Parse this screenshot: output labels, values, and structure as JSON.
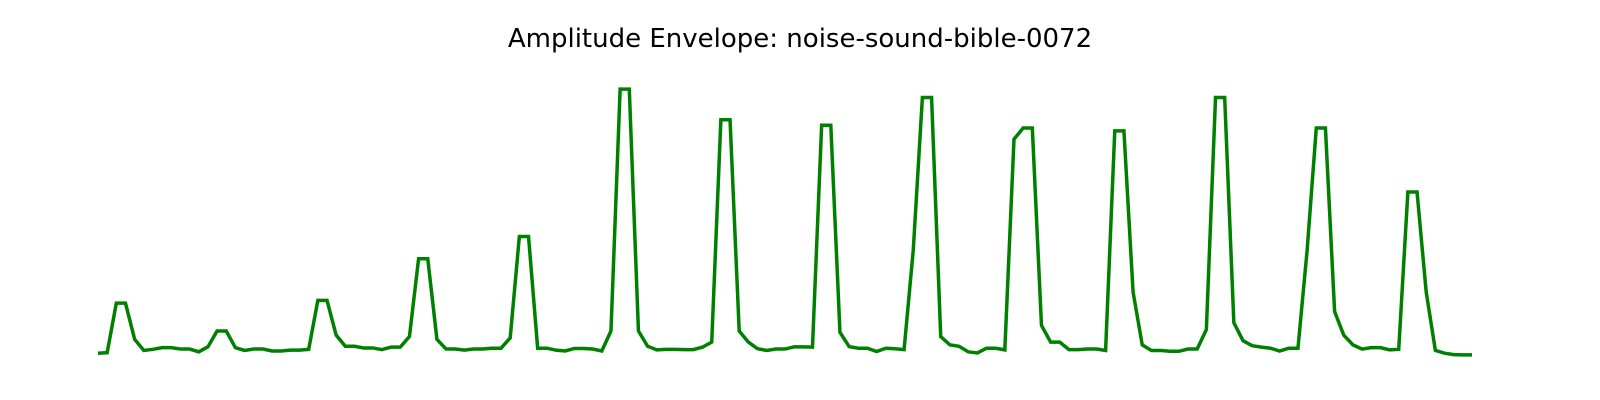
{
  "chart_data": {
    "type": "line",
    "title": "Amplitude Envelope: noise-sound-bible-0072",
    "xlabel": "",
    "ylabel": "",
    "axes_visible": false,
    "grid": false,
    "line_color": "#008000",
    "ylim": [
      0,
      1.0
    ],
    "series": [
      {
        "values": [
          0.01,
          0.012,
          0.19,
          0.19,
          0.06,
          0.02,
          0.024,
          0.03,
          0.03,
          0.025,
          0.025,
          0.015,
          0.033,
          0.09,
          0.09,
          0.03,
          0.02,
          0.025,
          0.025,
          0.018,
          0.018,
          0.021,
          0.021,
          0.024,
          0.2,
          0.2,
          0.075,
          0.035,
          0.035,
          0.029,
          0.029,
          0.023,
          0.032,
          0.032,
          0.07,
          0.35,
          0.35,
          0.06,
          0.025,
          0.025,
          0.021,
          0.025,
          0.025,
          0.028,
          0.028,
          0.065,
          0.43,
          0.43,
          0.028,
          0.028,
          0.021,
          0.018,
          0.027,
          0.027,
          0.025,
          0.018,
          0.09,
          0.96,
          0.96,
          0.09,
          0.035,
          0.022,
          0.024,
          0.024,
          0.023,
          0.023,
          0.032,
          0.05,
          0.85,
          0.85,
          0.09,
          0.05,
          0.026,
          0.02,
          0.025,
          0.025,
          0.033,
          0.033,
          0.032,
          0.83,
          0.83,
          0.085,
          0.034,
          0.028,
          0.028,
          0.016,
          0.028,
          0.026,
          0.023,
          0.38,
          0.93,
          0.93,
          0.07,
          0.04,
          0.035,
          0.015,
          0.011,
          0.028,
          0.028,
          0.022,
          0.78,
          0.82,
          0.82,
          0.11,
          0.05,
          0.05,
          0.023,
          0.023,
          0.025,
          0.025,
          0.02,
          0.81,
          0.81,
          0.23,
          0.04,
          0.02,
          0.02,
          0.017,
          0.017,
          0.025,
          0.025,
          0.095,
          0.93,
          0.93,
          0.12,
          0.055,
          0.037,
          0.032,
          0.028,
          0.018,
          0.028,
          0.028,
          0.38,
          0.82,
          0.82,
          0.16,
          0.075,
          0.04,
          0.025,
          0.03,
          0.03,
          0.022,
          0.024,
          0.59,
          0.59,
          0.23,
          0.02,
          0.01,
          0.005,
          0.004,
          0.004
        ]
      }
    ]
  }
}
